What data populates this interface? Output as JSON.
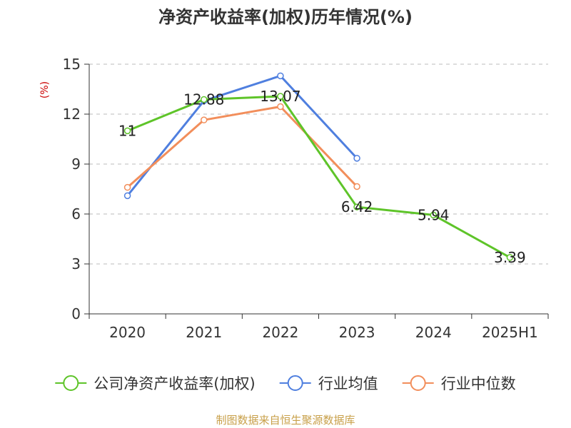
{
  "chart_data": {
    "type": "line",
    "title": "净资产收益率(加权)历年情况(%)",
    "y_unit": "(%)",
    "categories": [
      "2020",
      "2021",
      "2022",
      "2023",
      "2024",
      "2025H1"
    ],
    "ylim": [
      0,
      15
    ],
    "yticks": [
      0,
      3,
      6,
      9,
      12,
      15
    ],
    "grid": true,
    "legend_position": "bottom",
    "series": [
      {
        "name": "公司净资产收益率(加权)",
        "color": "#5ec429",
        "values": [
          11,
          12.88,
          13.07,
          6.42,
          5.94,
          3.39
        ],
        "labels": [
          "11",
          "12.88",
          "13.07",
          "6.42",
          "5.94",
          "3.39"
        ]
      },
      {
        "name": "行业均值",
        "color": "#4f7fdf",
        "values": [
          7.1,
          12.8,
          14.3,
          9.35,
          null,
          null
        ]
      },
      {
        "name": "行业中位数",
        "color": "#f28e5b",
        "values": [
          7.6,
          11.65,
          12.45,
          7.65,
          null,
          null
        ]
      }
    ]
  },
  "source": "制图数据来自恒生聚源数据库"
}
